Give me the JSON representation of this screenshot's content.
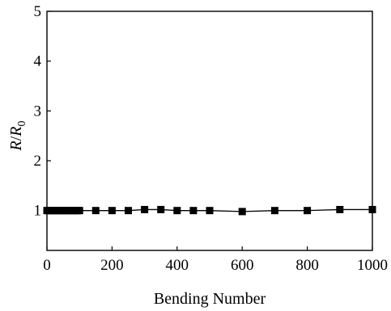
{
  "chart_data": {
    "type": "line",
    "title": "",
    "xlabel": "Bending Number",
    "ylabel": {
      "numerator": "R",
      "denominator": "R",
      "denominator_subscript": "0"
    },
    "xlim": [
      0,
      1000
    ],
    "ylim": [
      0.2,
      5
    ],
    "x_ticks": [
      0,
      200,
      400,
      600,
      800,
      1000
    ],
    "y_ticks": [
      1,
      2,
      3,
      4,
      5
    ],
    "grid": false,
    "legend": "none",
    "marker": "square",
    "line_color": "#000000",
    "series": [
      {
        "x": [
          0,
          5,
          10,
          15,
          20,
          25,
          30,
          35,
          40,
          45,
          50,
          55,
          60,
          65,
          70,
          75,
          80,
          85,
          90,
          95,
          100,
          150,
          200,
          250,
          300,
          350,
          400,
          450,
          500,
          600,
          700,
          800,
          900,
          1000
        ],
        "values": [
          1.0,
          1.0,
          1.0,
          1.0,
          1.0,
          1.0,
          1.0,
          1.0,
          1.0,
          1.0,
          1.0,
          1.0,
          1.0,
          1.0,
          1.0,
          1.0,
          1.0,
          1.0,
          1.0,
          1.0,
          1.0,
          1.0,
          1.0,
          1.0,
          1.02,
          1.02,
          1.0,
          1.0,
          1.0,
          0.98,
          1.0,
          1.0,
          1.02,
          1.02
        ]
      }
    ]
  }
}
